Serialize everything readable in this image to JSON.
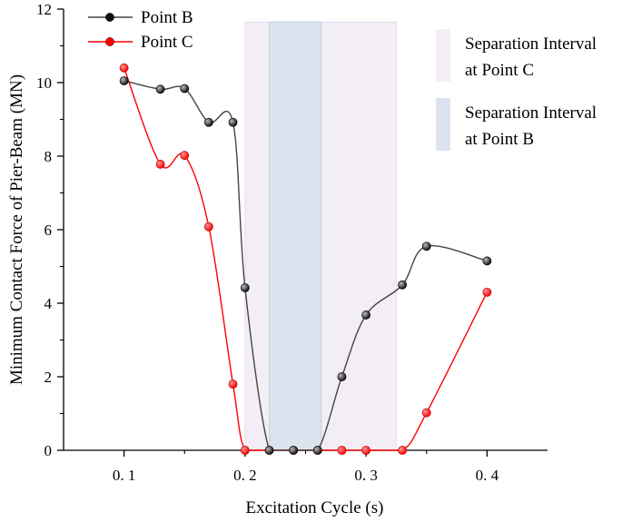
{
  "chart_data": {
    "type": "line",
    "title": "",
    "xlabel": "Excitation Cycle (s)",
    "ylabel": "Minimum Contact Force of Pier-Beam (MN)",
    "xlim": [
      0.05,
      0.45
    ],
    "ylim": [
      0,
      12
    ],
    "x_ticks": [
      0.1,
      0.2,
      0.3,
      0.4
    ],
    "x_tick_labels": [
      "0. 1",
      "0. 2",
      "0. 3",
      "0. 4"
    ],
    "y_ticks": [
      0,
      2,
      4,
      6,
      8,
      10,
      12
    ],
    "y_tick_labels": [
      "0",
      "2",
      "4",
      "6",
      "8",
      "10",
      "12"
    ],
    "series": [
      {
        "name": "Point B",
        "color": "#444444",
        "marker_color": "#111111",
        "x": [
          0.1,
          0.13,
          0.15,
          0.17,
          0.19,
          0.2,
          0.22,
          0.24,
          0.26,
          0.28,
          0.3,
          0.33,
          0.35,
          0.4
        ],
        "y": [
          10.05,
          9.82,
          9.84,
          8.92,
          8.92,
          4.42,
          0,
          0,
          0,
          2.0,
          3.68,
          4.5,
          5.55,
          5.15
        ]
      },
      {
        "name": "Point C",
        "color": "#ff0000",
        "marker_color": "#ff0000",
        "x": [
          0.1,
          0.13,
          0.15,
          0.17,
          0.19,
          0.2,
          0.22,
          0.24,
          0.26,
          0.28,
          0.3,
          0.33,
          0.35,
          0.4
        ],
        "y": [
          10.4,
          7.78,
          8.02,
          6.08,
          1.8,
          0,
          0,
          0,
          0,
          0,
          0,
          0,
          1.02,
          4.3
        ]
      }
    ],
    "shaded_regions": [
      {
        "name": "Separation Interval at Point C",
        "x_range": [
          0.2,
          0.325
        ],
        "color": "#f3eef6"
      },
      {
        "name": "Separation Interval at Point B",
        "x_range": [
          0.22,
          0.263
        ],
        "color": "#dbe4ee"
      }
    ],
    "legend": {
      "placement": "top-left",
      "entries": [
        "Point B",
        "Point C"
      ]
    },
    "region_legend": {
      "placement": "top-right",
      "entries": [
        {
          "lines": [
            "Separation Interval",
            "at Point C"
          ],
          "color": "#f3eef6"
        },
        {
          "lines": [
            "Separation Interval",
            "at Point B"
          ],
          "color": "#dbe4ee"
        }
      ]
    }
  }
}
